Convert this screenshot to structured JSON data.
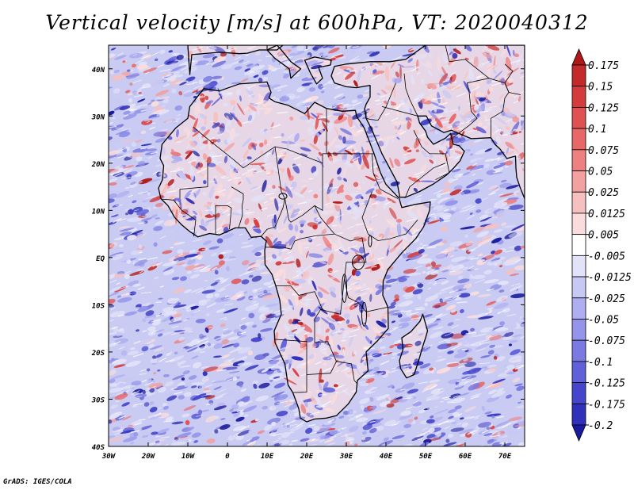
{
  "title": "Vertical velocity [m/s] at 600hPa, VT: 2020040312",
  "credit": "GrADS: IGES/COLA",
  "map": {
    "variable": "Vertical velocity",
    "units": "m/s",
    "level": "600hPa",
    "valid_time": "2020040312",
    "lon_range": [
      -30,
      75
    ],
    "lat_range": [
      -40,
      45
    ],
    "lon_ticks": [
      {
        "value": -30,
        "label": "30W"
      },
      {
        "value": -20,
        "label": "20W"
      },
      {
        "value": -10,
        "label": "10W"
      },
      {
        "value": 0,
        "label": "0"
      },
      {
        "value": 10,
        "label": "10E"
      },
      {
        "value": 20,
        "label": "20E"
      },
      {
        "value": 30,
        "label": "30E"
      },
      {
        "value": 40,
        "label": "40E"
      },
      {
        "value": 50,
        "label": "50E"
      },
      {
        "value": 60,
        "label": "60E"
      },
      {
        "value": 70,
        "label": "70E"
      }
    ],
    "lat_ticks": [
      {
        "value": 40,
        "label": "40N"
      },
      {
        "value": 30,
        "label": "30N"
      },
      {
        "value": 20,
        "label": "20N"
      },
      {
        "value": 10,
        "label": "10N"
      },
      {
        "value": 0,
        "label": "EQ"
      },
      {
        "value": -10,
        "label": "10S"
      },
      {
        "value": -20,
        "label": "20S"
      },
      {
        "value": -30,
        "label": "30S"
      },
      {
        "value": -40,
        "label": "40S"
      }
    ]
  },
  "colorbar": {
    "labels": [
      "0.175",
      "0.15",
      "0.125",
      "0.1",
      "0.075",
      "0.05",
      "0.025",
      "0.0125",
      "0.005",
      "-0.005",
      "-0.0125",
      "-0.025",
      "-0.05",
      "-0.075",
      "-0.1",
      "-0.125",
      "-0.175",
      "-0.2"
    ],
    "colors": [
      "#b01818",
      "#c42a2a",
      "#d43c3c",
      "#e05252",
      "#e86868",
      "#ee8080",
      "#f2a0a0",
      "#f6c0c0",
      "#fadcdc",
      "#ffffff",
      "#e2e2f8",
      "#c8c8f4",
      "#aeaef0",
      "#9494ea",
      "#7a7ae2",
      "#6060d8",
      "#4646cc",
      "#3030bb",
      "#1a1a9e"
    ]
  },
  "colors": {
    "ocean_base": "#c9cbf2",
    "land_base": "#e7d7e6",
    "coast": "#000000"
  }
}
